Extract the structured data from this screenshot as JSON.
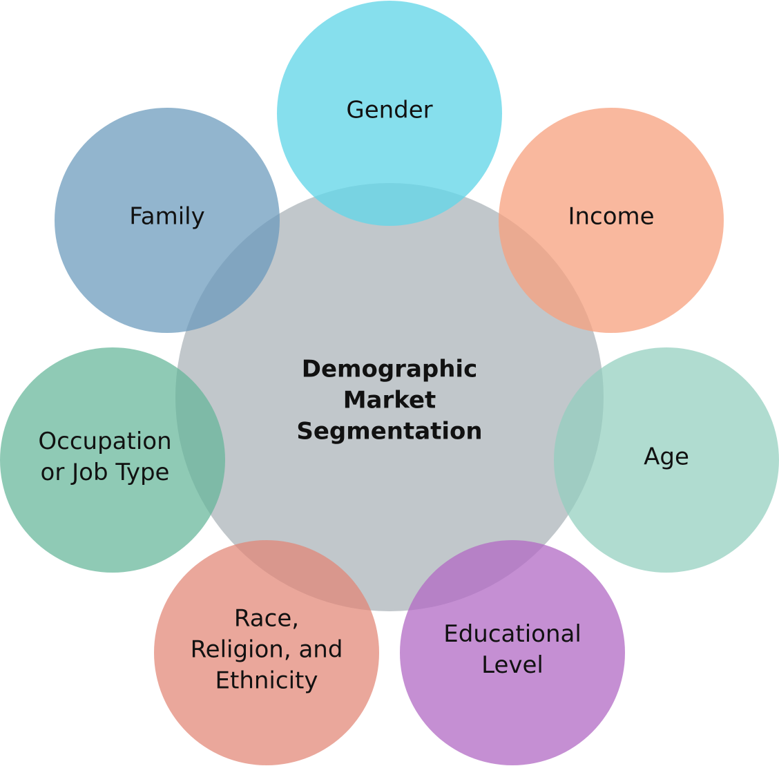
{
  "center": {
    "lines": [
      "Demographic",
      "Market",
      "Segmentation"
    ],
    "color": "#c1c7cb"
  },
  "segments": {
    "gender": {
      "lines": [
        "Gender"
      ],
      "color": "rgba(100, 214, 232, 0.78)"
    },
    "income": {
      "lines": [
        "Income"
      ],
      "color": "rgba(247, 160, 125, 0.75)"
    },
    "age": {
      "lines": [
        "Age"
      ],
      "color": "rgba(145, 206, 190, 0.72)"
    },
    "education": {
      "lines": [
        "Educational",
        "Level"
      ],
      "color": "rgba(177, 105, 196, 0.75)"
    },
    "race": {
      "lines": [
        "Race,",
        "Religion, and",
        "Ethnicity"
      ],
      "color": "rgba(226, 133, 117, 0.72)"
    },
    "occupation": {
      "lines": [
        "Occupation",
        "or Job Type"
      ],
      "color": "rgba(100, 181, 152, 0.72)"
    },
    "family": {
      "lines": [
        "Family"
      ],
      "color": "rgba(104, 152, 187, 0.72)"
    }
  }
}
